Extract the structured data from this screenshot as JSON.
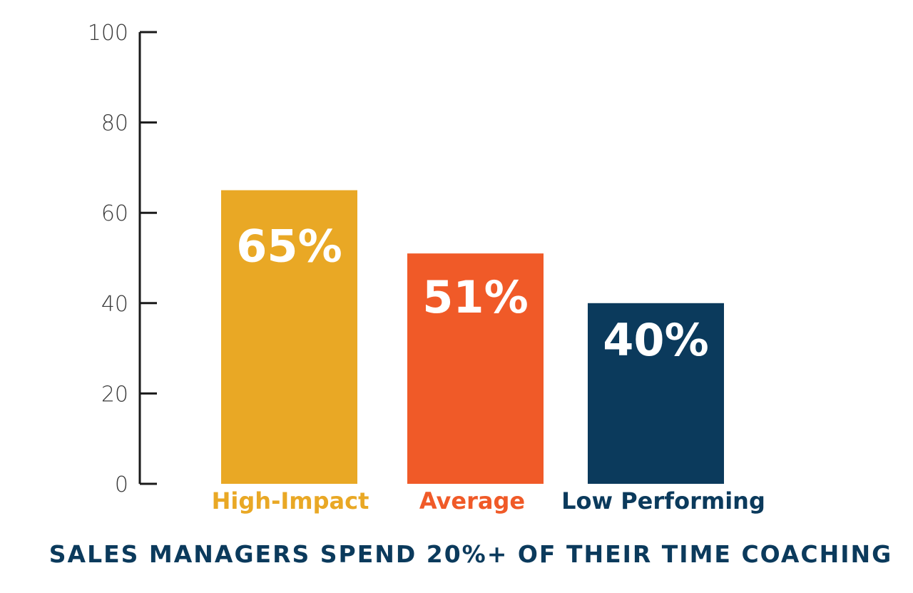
{
  "chart_data": {
    "type": "bar",
    "title": "SALES MANAGERS SPEND 20%+ OF THEIR TIME COACHING",
    "categories": [
      "High-Impact",
      "Average",
      "Low Performing"
    ],
    "values": [
      65,
      51,
      40
    ],
    "value_labels": [
      "65%",
      "51%",
      "40%"
    ],
    "colors": [
      "#e9a825",
      "#f05a28",
      "#0b3a5c"
    ],
    "ylim": [
      0,
      100
    ],
    "yticks": [
      0,
      20,
      40,
      60,
      80,
      100
    ],
    "grid": false,
    "legend": "none"
  }
}
